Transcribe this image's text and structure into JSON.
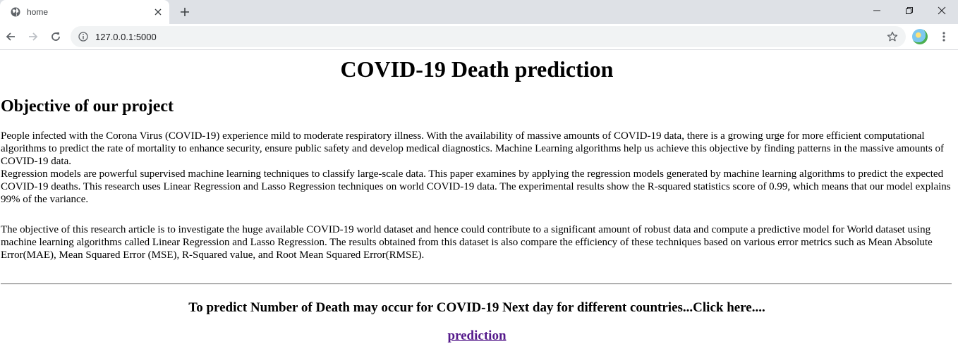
{
  "browser": {
    "tab_title": "home",
    "url": "127.0.0.1:5000"
  },
  "page": {
    "title": "COVID-19 Death prediction",
    "section_heading": "Objective of our project",
    "paragraph1_line1": "People infected with the Corona Virus (COVID-19) experience mild to moderate respiratory illness. With the availability of massive amounts of COVID-19 data, there is a growing urge for more efficient computational algorithms to predict the rate of mortality to enhance security, ensure public safety and develop medical diagnostics. Machine Learning algorithms help us achieve this objective by finding patterns in the massive amounts of COVID-19 data.",
    "paragraph1_line2": "Regression models are powerful supervised machine learning techniques to classify large-scale data. This paper examines by applying the regression models generated by machine learning algorithms to predict the expected COVID-19 deaths. This research uses Linear Regression and Lasso Regression techniques on world COVID-19 data. The experimental results show the R-squared statistics score of 0.99, which means that our model explains 99% of the variance.",
    "paragraph2": "The objective of this research article is to investigate the huge available COVID-19 world dataset and hence could contribute to a significant amount of robust data and compute a predictive model for World dataset using machine learning algorithms called Linear Regression and Lasso Regression. The results obtained from this dataset is also compare the efficiency of these techniques based on various error metrics such as Mean Absolute Error(MAE), Mean Squared Error (MSE), R-Squared value, and Root Mean Squared Error(RMSE).",
    "cta_heading": "To predict Number of Death may occur for COVID-19 Next day for different countries...Click here....",
    "prediction_link": "prediction"
  },
  "icons": {
    "favicon": "globe-icon",
    "tab_close": "close-icon",
    "new_tab": "plus-icon",
    "back": "arrow-left-icon",
    "forward": "arrow-right-icon",
    "reload": "reload-icon",
    "site_info": "info-icon",
    "bookmark": "star-icon",
    "menu": "kebab-menu-icon"
  },
  "colors": {
    "link_visited": "#551a8b",
    "tabbar_bg": "#dee1e6",
    "omnibox_bg": "#f1f3f4"
  }
}
